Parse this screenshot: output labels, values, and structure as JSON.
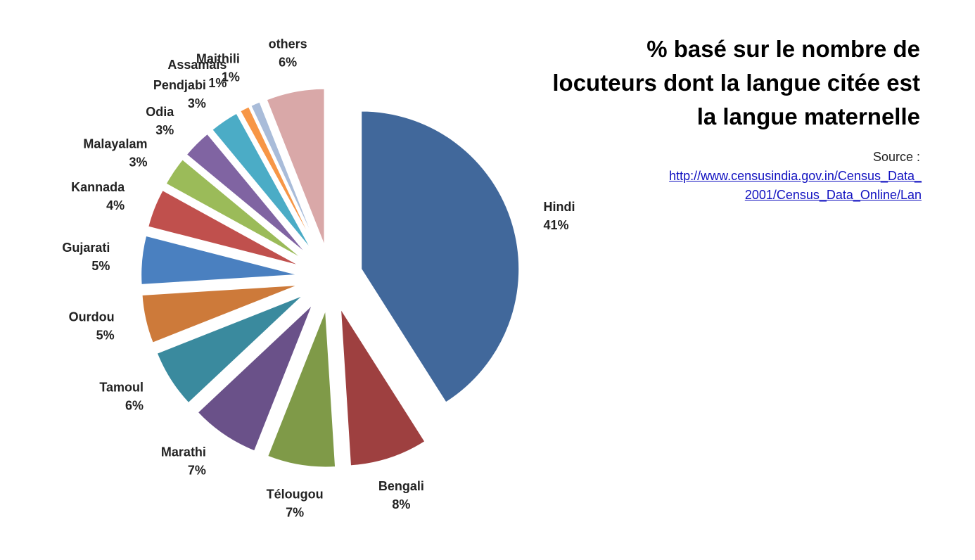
{
  "chart_data": {
    "type": "pie",
    "title": "% basé sur le nombre de locuteurs dont la langue citée est la langue maternelle",
    "source": "Source :",
    "source_link": "http://www.censusindia.gov.in/Census_Data_2001/Census_Data_Online/Lan",
    "categories": [
      "Hindi",
      "Bengali",
      "Télougou",
      "Marathi",
      "Tamoul",
      "Ourdou",
      "Gujarati",
      "Kannada",
      "Malayalam",
      "Odia",
      "Pendjabi",
      "Assamais",
      "Maithili",
      "others"
    ],
    "values": [
      41,
      8,
      7,
      7,
      6,
      5,
      5,
      4,
      3,
      3,
      3,
      1,
      1,
      6
    ],
    "value_labels": [
      "41%",
      "8%",
      "7%",
      "7%",
      "6%",
      "5%",
      "5%",
      "4%",
      "3%",
      "3%",
      "3%",
      "1%",
      "1%",
      "6%"
    ],
    "colors": [
      "#41689b",
      "#9e4040",
      "#7f9a48",
      "#6a5189",
      "#3a8a9e",
      "#cd7a3a",
      "#4a80c0",
      "#c0504d",
      "#9bbb59",
      "#8064a2",
      "#4bacc6",
      "#f79646",
      "#a9bcd9",
      "#d9a8a8"
    ]
  }
}
